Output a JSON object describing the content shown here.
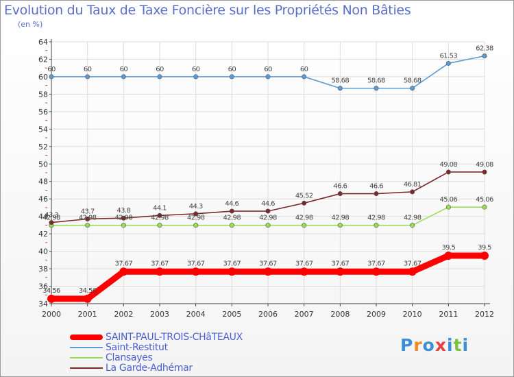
{
  "chart_data": {
    "type": "line",
    "title": "Evolution du Taux de Taxe Foncière sur les Propriétés Non Bâties",
    "ylabel": "(en %)",
    "xlabel": "",
    "ylim": [
      34,
      64
    ],
    "ytick_step": 2,
    "grid": true,
    "legend_position": "bottom-left",
    "categories": [
      "2000",
      "2001",
      "2002",
      "2003",
      "2004",
      "2005",
      "2006",
      "2007",
      "2008",
      "2009",
      "2010",
      "2011",
      "2012"
    ],
    "series": [
      {
        "name": "SAINT-PAUL-TROIS-CHâTEAUX",
        "color": "#ff0000",
        "values": [
          34.56,
          34.56,
          37.67,
          37.67,
          37.67,
          37.67,
          37.67,
          37.67,
          37.67,
          37.67,
          37.67,
          39.5,
          39.5
        ],
        "labels": [
          "34.56",
          "34.56",
          "37.67",
          "37.67",
          "37.67",
          "37.67",
          "37.67",
          "37.67",
          "37.67",
          "37.67",
          "37.67",
          "39.5",
          "39.5"
        ]
      },
      {
        "name": "Saint-Restitut",
        "color": "#5b9bd5",
        "values": [
          60,
          60,
          60,
          60,
          60,
          60,
          60,
          60,
          58.68,
          58.68,
          58.68,
          61.53,
          62.38
        ],
        "labels": [
          "60",
          "60",
          "60",
          "60",
          "60",
          "60",
          "60",
          "60",
          "58.68",
          "58.68",
          "58.68",
          "61.53",
          "62.38"
        ]
      },
      {
        "name": "Clansayes",
        "color": "#99dd55",
        "values": [
          42.98,
          42.98,
          42.98,
          42.98,
          42.98,
          42.98,
          42.98,
          42.98,
          42.98,
          42.98,
          42.98,
          45.06,
          45.06
        ],
        "labels": [
          "42.98",
          "42.98",
          "42.98",
          "42.98",
          "42.98",
          "42.98",
          "42.98",
          "42.98",
          "42.98",
          "42.98",
          "42.98",
          "45.06",
          "45.06"
        ]
      },
      {
        "name": "La Garde-Adhémar",
        "color": "#7b2a2a",
        "values": [
          43.3,
          43.7,
          43.8,
          44.1,
          44.3,
          44.6,
          44.6,
          45.52,
          46.6,
          46.6,
          46.81,
          49.08,
          49.08
        ],
        "labels": [
          "43.3",
          "43.7",
          "43.8",
          "44.1",
          "44.3",
          "44.6",
          "44.6",
          "45.52",
          "46.6",
          "46.6",
          "46.81",
          "49.08",
          "49.08"
        ]
      }
    ]
  },
  "logo": {
    "text": "Proxiti",
    "colors": [
      "#3a8fd8",
      "#f08c1e",
      "#3a8fd8",
      "#e84040",
      "#3a8fd8",
      "#7cc242",
      "#3a8fd8"
    ]
  }
}
